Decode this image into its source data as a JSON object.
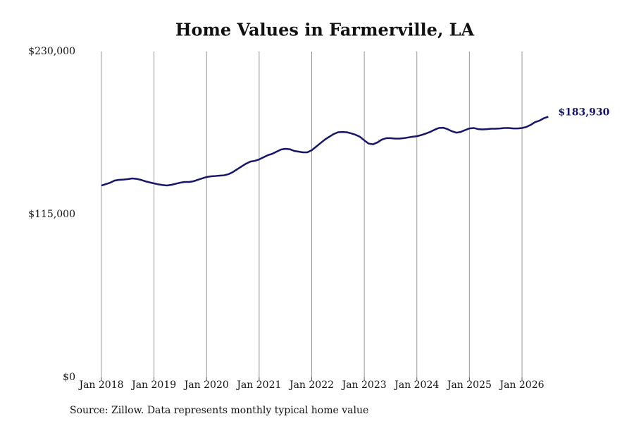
{
  "chart_data": {
    "type": "line",
    "title": "Home Values in Farmerville, LA",
    "source": "Source: Zillow. Data represents monthly typical home value",
    "x": [
      "2018-01",
      "2018-02",
      "2018-03",
      "2018-04",
      "2018-05",
      "2018-06",
      "2018-07",
      "2018-08",
      "2018-09",
      "2018-10",
      "2018-11",
      "2018-12",
      "2019-01",
      "2019-02",
      "2019-03",
      "2019-04",
      "2019-05",
      "2019-06",
      "2019-07",
      "2019-08",
      "2019-09",
      "2019-10",
      "2019-11",
      "2019-12",
      "2020-01",
      "2020-02",
      "2020-03",
      "2020-04",
      "2020-05",
      "2020-06",
      "2020-07",
      "2020-08",
      "2020-09",
      "2020-10",
      "2020-11",
      "2020-12",
      "2021-01",
      "2021-02",
      "2021-03",
      "2021-04",
      "2021-05",
      "2021-06",
      "2021-07",
      "2021-08",
      "2021-09",
      "2021-10",
      "2021-11",
      "2021-12",
      "2022-01",
      "2022-02",
      "2022-03",
      "2022-04",
      "2022-05",
      "2022-06",
      "2022-07",
      "2022-08",
      "2022-09",
      "2022-10",
      "2022-11",
      "2022-12",
      "2023-01",
      "2023-02",
      "2023-03",
      "2023-04",
      "2023-05",
      "2023-06",
      "2023-07",
      "2023-08",
      "2023-09",
      "2023-10",
      "2023-11",
      "2023-12",
      "2024-01",
      "2024-02",
      "2024-03",
      "2024-04",
      "2024-05",
      "2024-06",
      "2024-07",
      "2024-08",
      "2024-09",
      "2024-10",
      "2024-11",
      "2024-12",
      "2025-01",
      "2025-02",
      "2025-03",
      "2025-04",
      "2025-05",
      "2025-06",
      "2025-07",
      "2025-08",
      "2025-09",
      "2025-10",
      "2025-11",
      "2025-12",
      "2026-01",
      "2026-02",
      "2026-03",
      "2026-04",
      "2026-05",
      "2026-06",
      "2026-07"
    ],
    "series": [
      {
        "name": "Home value",
        "color": "#15166a",
        "values": [
          135400,
          136400,
          137400,
          138900,
          139400,
          139600,
          139900,
          140400,
          140100,
          139400,
          138400,
          137600,
          136900,
          136200,
          135700,
          135400,
          135900,
          136700,
          137400,
          137900,
          137900,
          138400,
          139400,
          140400,
          141400,
          141900,
          142100,
          142400,
          142600,
          143400,
          144900,
          146900,
          148900,
          150800,
          152300,
          152800,
          153800,
          155300,
          156800,
          157800,
          159300,
          160800,
          161300,
          161000,
          159800,
          159300,
          158800,
          158800,
          160300,
          162800,
          165300,
          167800,
          169800,
          171700,
          173000,
          173200,
          173000,
          172200,
          171200,
          169800,
          167300,
          165000,
          164500,
          165800,
          167800,
          168800,
          168800,
          168500,
          168500,
          168800,
          169300,
          169800,
          170200,
          171000,
          172000,
          173200,
          174700,
          176000,
          176200,
          175200,
          173700,
          172700,
          173200,
          174500,
          175700,
          176000,
          175200,
          175000,
          175200,
          175500,
          175500,
          175700,
          176000,
          176000,
          175700,
          175700,
          176000,
          176700,
          178200,
          180200,
          181200,
          182900,
          183930
        ],
        "value_labels": [
          null,
          null,
          null,
          null,
          null,
          null,
          null,
          null,
          null,
          null,
          null,
          null,
          null,
          null,
          null,
          null,
          null,
          null,
          null,
          null,
          null,
          null,
          null,
          null,
          null,
          null,
          null,
          null,
          null,
          null,
          null,
          null,
          null,
          null,
          null,
          null,
          null,
          null,
          null,
          null,
          null,
          null,
          null,
          null,
          null,
          null,
          null,
          null,
          null,
          null,
          null,
          null,
          null,
          null,
          null,
          null,
          null,
          null,
          null,
          null,
          null,
          null,
          null,
          null,
          null,
          null,
          null,
          null,
          null,
          null,
          null,
          null,
          null,
          null,
          null,
          null,
          null,
          null,
          null,
          null,
          null,
          null,
          null,
          null,
          null,
          null,
          null,
          null,
          null,
          null,
          null,
          null,
          null,
          null,
          null,
          null,
          null,
          null,
          null,
          null,
          null,
          null,
          "$183,930"
        ]
      }
    ],
    "xticks": [
      {
        "value": "2018-01",
        "label": "Jan 2018"
      },
      {
        "value": "2019-01",
        "label": "Jan 2019"
      },
      {
        "value": "2020-01",
        "label": "Jan 2020"
      },
      {
        "value": "2021-01",
        "label": "Jan 2021"
      },
      {
        "value": "2022-01",
        "label": "Jan 2022"
      },
      {
        "value": "2023-01",
        "label": "Jan 2023"
      },
      {
        "value": "2024-01",
        "label": "Jan 2024"
      },
      {
        "value": "2025-01",
        "label": "Jan 2025"
      },
      {
        "value": "2026-01",
        "label": "Jan 2026"
      }
    ],
    "ylim": [
      0,
      230000
    ],
    "yticks": [
      {
        "value": 0,
        "label": "$0"
      },
      {
        "value": 115000,
        "label": "$115,000"
      },
      {
        "value": 230000,
        "label": "$230,000"
      }
    ],
    "grid": "x"
  }
}
